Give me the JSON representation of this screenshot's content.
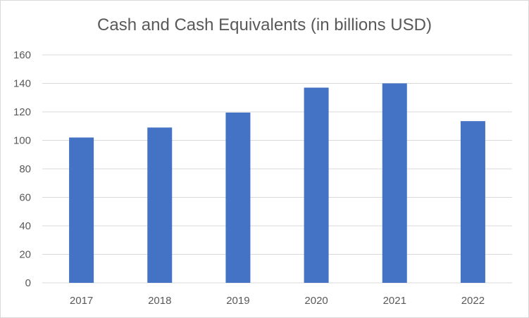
{
  "chart_data": {
    "type": "bar",
    "title": "Cash and Cash Equivalents (in billions USD)",
    "xlabel": "",
    "ylabel": "",
    "categories": [
      "2017",
      "2018",
      "2019",
      "2020",
      "2021",
      "2022"
    ],
    "values": [
      102,
      109,
      119.5,
      137,
      140,
      113.5
    ],
    "ylim": [
      0,
      160
    ],
    "yticks": [
      0,
      20,
      40,
      60,
      80,
      100,
      120,
      140,
      160
    ],
    "grid": true,
    "legend": "none",
    "bar_color": "#4472c4",
    "grid_color": "#d9d9d9"
  }
}
